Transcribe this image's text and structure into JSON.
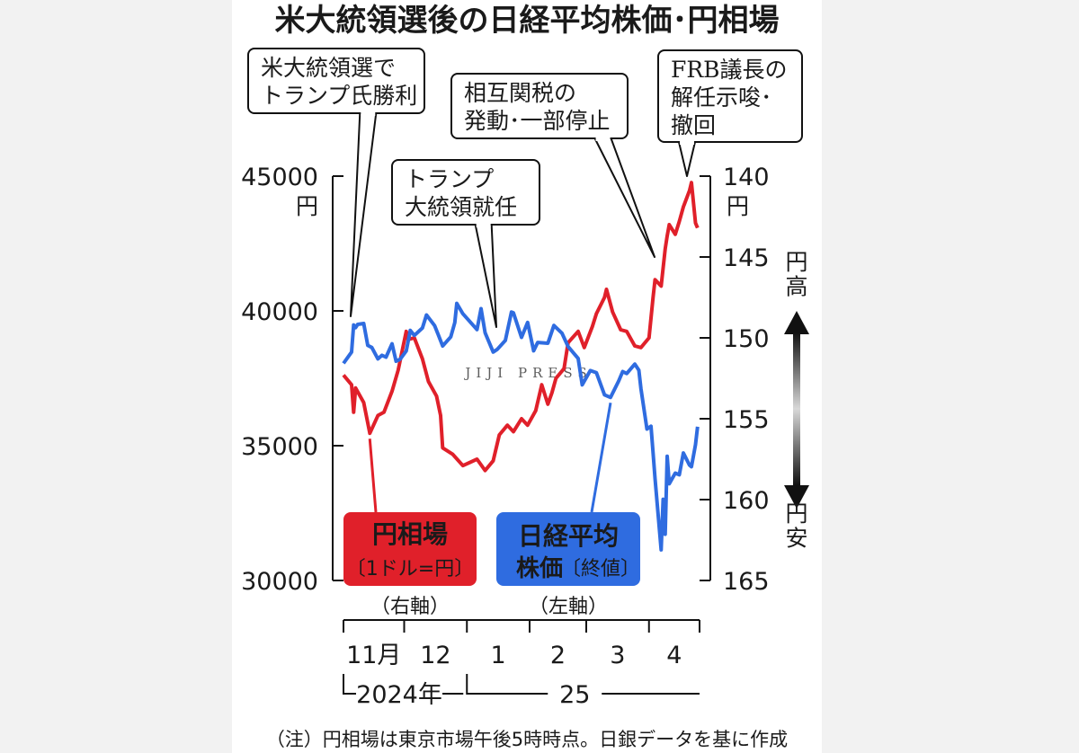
{
  "chart_data": {
    "type": "line",
    "title": "米大統領選後の日経平均株価･円相場",
    "note": "（注）円相場は東京市場午後5時時点。日銀データを基に作成",
    "watermark": "JIJI PRESS",
    "y_left": {
      "ticks": [
        "45000",
        "40000",
        "35000",
        "30000"
      ],
      "unit": "円",
      "ylim": [
        30000,
        45000
      ]
    },
    "y_right": {
      "ticks": [
        "140",
        "145",
        "150",
        "155",
        "160",
        "165"
      ],
      "unit": "円",
      "ylim": [
        140,
        165
      ],
      "inverted": true
    },
    "yen_strong": "円高",
    "yen_weak": "円安",
    "x_months": [
      "11月",
      "12",
      "1",
      "2",
      "3",
      "4"
    ],
    "x_years": [
      "2024年",
      "25"
    ],
    "x_range": [
      "2024-11-01",
      "2025-04-26"
    ],
    "series": [
      {
        "name": "円相場",
        "sub": "〔1ドル=円〕",
        "axis": "（右軸）",
        "color": "#e0202a",
        "points": [
          [
            "2024-11-01",
            152.3
          ],
          [
            "2024-11-05",
            152.9
          ],
          [
            "2024-11-06",
            154.6
          ],
          [
            "2024-11-07",
            153.1
          ],
          [
            "2024-11-11",
            154.0
          ],
          [
            "2024-11-14",
            155.9
          ],
          [
            "2024-11-18",
            154.8
          ],
          [
            "2024-11-21",
            154.6
          ],
          [
            "2024-11-25",
            153.3
          ],
          [
            "2024-11-28",
            152.0
          ],
          [
            "2024-12-02",
            149.6
          ],
          [
            "2024-12-03",
            150.1
          ],
          [
            "2024-12-06",
            150.0
          ],
          [
            "2024-12-10",
            151.3
          ],
          [
            "2024-12-13",
            152.7
          ],
          [
            "2024-12-17",
            153.6
          ],
          [
            "2024-12-19",
            154.8
          ],
          [
            "2024-12-20",
            156.8
          ],
          [
            "2024-12-25",
            157.2
          ],
          [
            "2024-12-30",
            157.9
          ],
          [
            "2025-01-06",
            157.5
          ],
          [
            "2025-01-10",
            158.2
          ],
          [
            "2025-01-14",
            157.6
          ],
          [
            "2025-01-17",
            156.0
          ],
          [
            "2025-01-21",
            155.4
          ],
          [
            "2025-01-24",
            155.8
          ],
          [
            "2025-01-28",
            155.0
          ],
          [
            "2025-01-31",
            155.4
          ],
          [
            "2025-02-04",
            154.5
          ],
          [
            "2025-02-07",
            152.9
          ],
          [
            "2025-02-10",
            154.1
          ],
          [
            "2025-02-12",
            153.4
          ],
          [
            "2025-02-14",
            152.5
          ],
          [
            "2025-02-18",
            151.9
          ],
          [
            "2025-02-20",
            150.3
          ],
          [
            "2025-02-25",
            149.6
          ],
          [
            "2025-02-28",
            150.6
          ],
          [
            "2025-03-04",
            149.3
          ],
          [
            "2025-03-06",
            148.5
          ],
          [
            "2025-03-10",
            147.5
          ],
          [
            "2025-03-11",
            147.0
          ],
          [
            "2025-03-14",
            148.4
          ],
          [
            "2025-03-18",
            149.5
          ],
          [
            "2025-03-21",
            149.6
          ],
          [
            "2025-03-25",
            150.5
          ],
          [
            "2025-03-28",
            150.6
          ],
          [
            "2025-04-01",
            150.0
          ],
          [
            "2025-04-03",
            147.5
          ],
          [
            "2025-04-04",
            146.4
          ],
          [
            "2025-04-07",
            146.8
          ],
          [
            "2025-04-09",
            144.5
          ],
          [
            "2025-04-10",
            143.7
          ],
          [
            "2025-04-11",
            143.0
          ],
          [
            "2025-04-14",
            143.6
          ],
          [
            "2025-04-16",
            142.8
          ],
          [
            "2025-04-18",
            141.9
          ],
          [
            "2025-04-21",
            140.9
          ],
          [
            "2025-04-22",
            140.4
          ],
          [
            "2025-04-24",
            142.9
          ],
          [
            "2025-04-25",
            143.2
          ]
        ]
      },
      {
        "name": "日経平均",
        "name2": "株価",
        "sub": "〔終値〕",
        "axis": "（左軸）",
        "color": "#2f6ce0",
        "points": [
          [
            "2024-11-01",
            38053
          ],
          [
            "2024-11-05",
            38474
          ],
          [
            "2024-11-06",
            39480
          ],
          [
            "2024-11-07",
            39381
          ],
          [
            "2024-11-08",
            39500
          ],
          [
            "2024-11-11",
            39533
          ],
          [
            "2024-11-13",
            38721
          ],
          [
            "2024-11-15",
            38642
          ],
          [
            "2024-11-18",
            38220
          ],
          [
            "2024-11-20",
            38352
          ],
          [
            "2024-11-22",
            38283
          ],
          [
            "2024-11-25",
            38780
          ],
          [
            "2024-11-27",
            38134
          ],
          [
            "2024-11-29",
            38208
          ],
          [
            "2024-12-02",
            38513
          ],
          [
            "2024-12-04",
            39276
          ],
          [
            "2024-12-06",
            39091
          ],
          [
            "2024-12-10",
            39367
          ],
          [
            "2024-12-12",
            39849
          ],
          [
            "2024-12-16",
            39457
          ],
          [
            "2024-12-18",
            39082
          ],
          [
            "2024-12-20",
            38701
          ],
          [
            "2024-12-24",
            39037
          ],
          [
            "2024-12-26",
            39568
          ],
          [
            "2024-12-27",
            40281
          ],
          [
            "2024-12-30",
            39894
          ],
          [
            "2025-01-06",
            39307
          ],
          [
            "2025-01-08",
            40083
          ],
          [
            "2025-01-10",
            39190
          ],
          [
            "2025-01-14",
            38474
          ],
          [
            "2025-01-16",
            38572
          ],
          [
            "2025-01-20",
            38902
          ],
          [
            "2025-01-23",
            39958
          ],
          [
            "2025-01-24",
            39931
          ],
          [
            "2025-01-28",
            39016
          ],
          [
            "2025-01-31",
            39572
          ],
          [
            "2025-02-03",
            38520
          ],
          [
            "2025-02-05",
            38831
          ],
          [
            "2025-02-10",
            38801
          ],
          [
            "2025-02-13",
            39461
          ],
          [
            "2025-02-17",
            39174
          ],
          [
            "2025-02-20",
            38678
          ],
          [
            "2025-02-25",
            38237
          ],
          [
            "2025-02-27",
            37256
          ],
          [
            "2025-03-03",
            37785
          ],
          [
            "2025-03-06",
            37705
          ],
          [
            "2025-03-10",
            36887
          ],
          [
            "2025-03-13",
            36790
          ],
          [
            "2025-03-17",
            37396
          ],
          [
            "2025-03-19",
            37751
          ],
          [
            "2025-03-21",
            37677
          ],
          [
            "2025-03-25",
            38027
          ],
          [
            "2025-03-27",
            37799
          ],
          [
            "2025-03-28",
            37120
          ],
          [
            "2025-03-31",
            35617
          ],
          [
            "2025-04-02",
            35725
          ],
          [
            "2025-04-03",
            34736
          ],
          [
            "2025-04-04",
            33780
          ],
          [
            "2025-04-07",
            31136
          ],
          [
            "2025-04-08",
            33012
          ],
          [
            "2025-04-09",
            31714
          ],
          [
            "2025-04-10",
            34609
          ],
          [
            "2025-04-11",
            33586
          ],
          [
            "2025-04-14",
            33982
          ],
          [
            "2025-04-16",
            33920
          ],
          [
            "2025-04-18",
            34730
          ],
          [
            "2025-04-21",
            34280
          ],
          [
            "2025-04-22",
            34220
          ],
          [
            "2025-04-24",
            35039
          ],
          [
            "2025-04-25",
            35705
          ]
        ]
      }
    ],
    "annotations": [
      {
        "lines": [
          "米大統領選で",
          "トランプ氏勝利"
        ],
        "date": "2024-11-06"
      },
      {
        "lines": [
          "トランプ",
          "大統領就任"
        ],
        "date": "2025-01-20"
      },
      {
        "lines": [
          "相互関税の",
          "発動･一部停止"
        ],
        "date": "2025-04-09"
      },
      {
        "lines": [
          "FRB議長の",
          "解任示唆･",
          "撤回"
        ],
        "date": "2025-04-22"
      }
    ]
  }
}
